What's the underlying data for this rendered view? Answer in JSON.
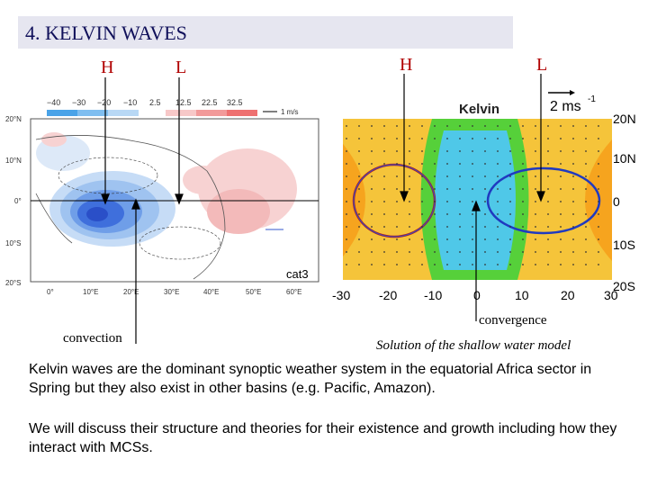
{
  "slide": {
    "title": "4. KELVIN WAVES",
    "labels": {
      "h_left": "H",
      "l_left": "L",
      "h_right": "H",
      "l_right": "L"
    },
    "left_map": {
      "colorbar_ticks": [
        "−40",
        "−30",
        "−20",
        "−10",
        "2.5",
        "12.5",
        "22.5",
        "32.5"
      ],
      "unit": "1 m/s",
      "lat_ticks": [
        "20°N",
        "10°N",
        "0°",
        "10°S",
        "20°S"
      ],
      "lon_ticks": [
        "0°",
        "10°E",
        "20°E",
        "30°E",
        "40°E",
        "50°E",
        "60°E"
      ],
      "annotation": "cat3"
    },
    "right_model": {
      "title": "Kelvin",
      "arrow_scale": "2 ms",
      "arrow_scale_sup": "-1",
      "y_ticks": [
        "20N",
        "10N",
        "0",
        "10S",
        "20S"
      ],
      "x_ticks": [
        "-30",
        "-20",
        "-10",
        "0",
        "10",
        "20",
        "30"
      ]
    },
    "captions": {
      "convection": "convection",
      "convergence": "convergence",
      "model": "Solution of the shallow water model"
    },
    "paragraphs": [
      "Kelvin waves are the dominant synoptic weather system in the equatorial Africa sector in Spring but they also exist in other basins (e.g. Pacific, Amazon).",
      "We will discuss their structure and theories for their existence and growth including how they interact with MCSs."
    ],
    "colors": {
      "title_bg": "#e6e6f0",
      "label_red": "#b00000"
    }
  }
}
